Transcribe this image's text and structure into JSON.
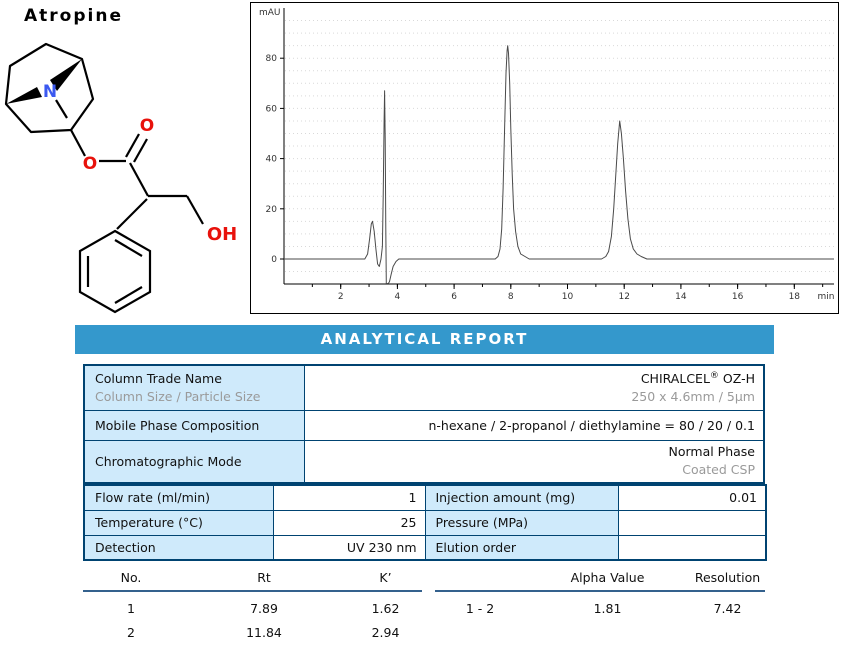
{
  "molecule": {
    "title": "Atropine",
    "atoms": {
      "n": "N",
      "o_ester": "O",
      "o_carbonyl": "O",
      "oh": "OH"
    },
    "colors": {
      "nitrogen": "#3b59f0",
      "oxygen": "#e8120c",
      "bond": "#000000"
    }
  },
  "banner": {
    "label": "ANALYTICAL REPORT",
    "bg": "#3498cc"
  },
  "info_table": {
    "rows": [
      {
        "label": "Column Trade Name",
        "sublabel": "Column Size / Particle Size",
        "value_brand": "CHIRALCEL",
        "value_reg": "®",
        "value_model": " OZ-H",
        "subvalue": "250 x 4.6mm / 5µm"
      },
      {
        "label": "Mobile Phase Composition",
        "value": "n-hexane / 2-propanol / diethylamine = 80 / 20 / 0.1"
      },
      {
        "label": "Chromatographic Mode",
        "value": "Normal Phase",
        "subvalue": "Coated CSP"
      }
    ]
  },
  "conditions_table": {
    "rows": [
      {
        "l1": "Flow rate (ml/min)",
        "v1": "1",
        "l2": "Injection amount (mg)",
        "v2": "0.01"
      },
      {
        "l1": "Temperature (°C)",
        "v1": "25",
        "l2": "Pressure (MPa)",
        "v2": ""
      },
      {
        "l1": "Detection",
        "v1": "UV 230 nm",
        "l2": "Elution order",
        "v2": ""
      }
    ]
  },
  "results": {
    "left": {
      "headers": [
        "No.",
        "Rt",
        "K’"
      ],
      "rows": [
        [
          "1",
          "7.89",
          "1.62"
        ],
        [
          "2",
          "11.84",
          "2.94"
        ]
      ]
    },
    "right": {
      "headers": [
        "",
        "Alpha Value",
        "Resolution"
      ],
      "rows": [
        [
          "1 - 2",
          "1.81",
          "7.42"
        ]
      ]
    }
  },
  "chart_data": {
    "type": "line",
    "title": "",
    "ylabel": "mAU",
    "xlabel": "min",
    "xlim": [
      0,
      19.4
    ],
    "ylim": [
      -10,
      100
    ],
    "x_major_ticks": [
      2,
      4,
      6,
      8,
      10,
      12,
      14,
      16,
      18
    ],
    "y_ticks": [
      0,
      20,
      40,
      60,
      80
    ],
    "grid": "dotted horizontal every 5 mAU",
    "legend": "none",
    "peaks": [
      {
        "name": "solvent front",
        "rt": 3.1,
        "height_mAU": 15
      },
      {
        "name": "injection spike",
        "rt": 3.55,
        "height_mAU": 67
      },
      {
        "name": "peak 1",
        "rt": 7.89,
        "height_mAU": 85
      },
      {
        "name": "peak 2",
        "rt": 11.84,
        "height_mAU": 55
      }
    ],
    "trace": [
      [
        0,
        0
      ],
      [
        0.6,
        0
      ],
      [
        1.2,
        0
      ],
      [
        1.8,
        0
      ],
      [
        2.4,
        0
      ],
      [
        2.85,
        0
      ],
      [
        2.95,
        2
      ],
      [
        3.02,
        8
      ],
      [
        3.08,
        14
      ],
      [
        3.12,
        15
      ],
      [
        3.18,
        11
      ],
      [
        3.24,
        4
      ],
      [
        3.3,
        -2
      ],
      [
        3.36,
        -3
      ],
      [
        3.42,
        0
      ],
      [
        3.47,
        5
      ],
      [
        3.5,
        25
      ],
      [
        3.53,
        55
      ],
      [
        3.55,
        67
      ],
      [
        3.57,
        48
      ],
      [
        3.59,
        12
      ],
      [
        3.61,
        -10
      ],
      [
        3.64,
        -10
      ],
      [
        3.68,
        -10
      ],
      [
        3.72,
        -9
      ],
      [
        3.78,
        -6
      ],
      [
        3.85,
        -3
      ],
      [
        3.95,
        -1
      ],
      [
        4.05,
        0
      ],
      [
        5,
        0
      ],
      [
        6,
        0
      ],
      [
        7,
        0
      ],
      [
        7.45,
        0
      ],
      [
        7.55,
        1
      ],
      [
        7.62,
        4
      ],
      [
        7.68,
        12
      ],
      [
        7.73,
        28
      ],
      [
        7.78,
        52
      ],
      [
        7.83,
        74
      ],
      [
        7.87,
        83
      ],
      [
        7.89,
        85
      ],
      [
        7.92,
        82
      ],
      [
        7.96,
        70
      ],
      [
        8.0,
        52
      ],
      [
        8.05,
        34
      ],
      [
        8.1,
        20
      ],
      [
        8.17,
        11
      ],
      [
        8.25,
        5
      ],
      [
        8.35,
        2
      ],
      [
        8.5,
        1
      ],
      [
        8.65,
        0
      ],
      [
        9.5,
        0
      ],
      [
        10.5,
        0
      ],
      [
        11.2,
        0
      ],
      [
        11.35,
        1
      ],
      [
        11.45,
        3
      ],
      [
        11.55,
        9
      ],
      [
        11.63,
        20
      ],
      [
        11.7,
        33
      ],
      [
        11.77,
        46
      ],
      [
        11.84,
        55
      ],
      [
        11.9,
        50
      ],
      [
        11.97,
        40
      ],
      [
        12.05,
        27
      ],
      [
        12.13,
        16
      ],
      [
        12.22,
        8
      ],
      [
        12.32,
        4
      ],
      [
        12.45,
        2
      ],
      [
        12.6,
        1
      ],
      [
        12.8,
        0
      ],
      [
        14,
        0
      ],
      [
        16,
        0
      ],
      [
        18,
        0
      ],
      [
        19.4,
        0
      ]
    ]
  }
}
